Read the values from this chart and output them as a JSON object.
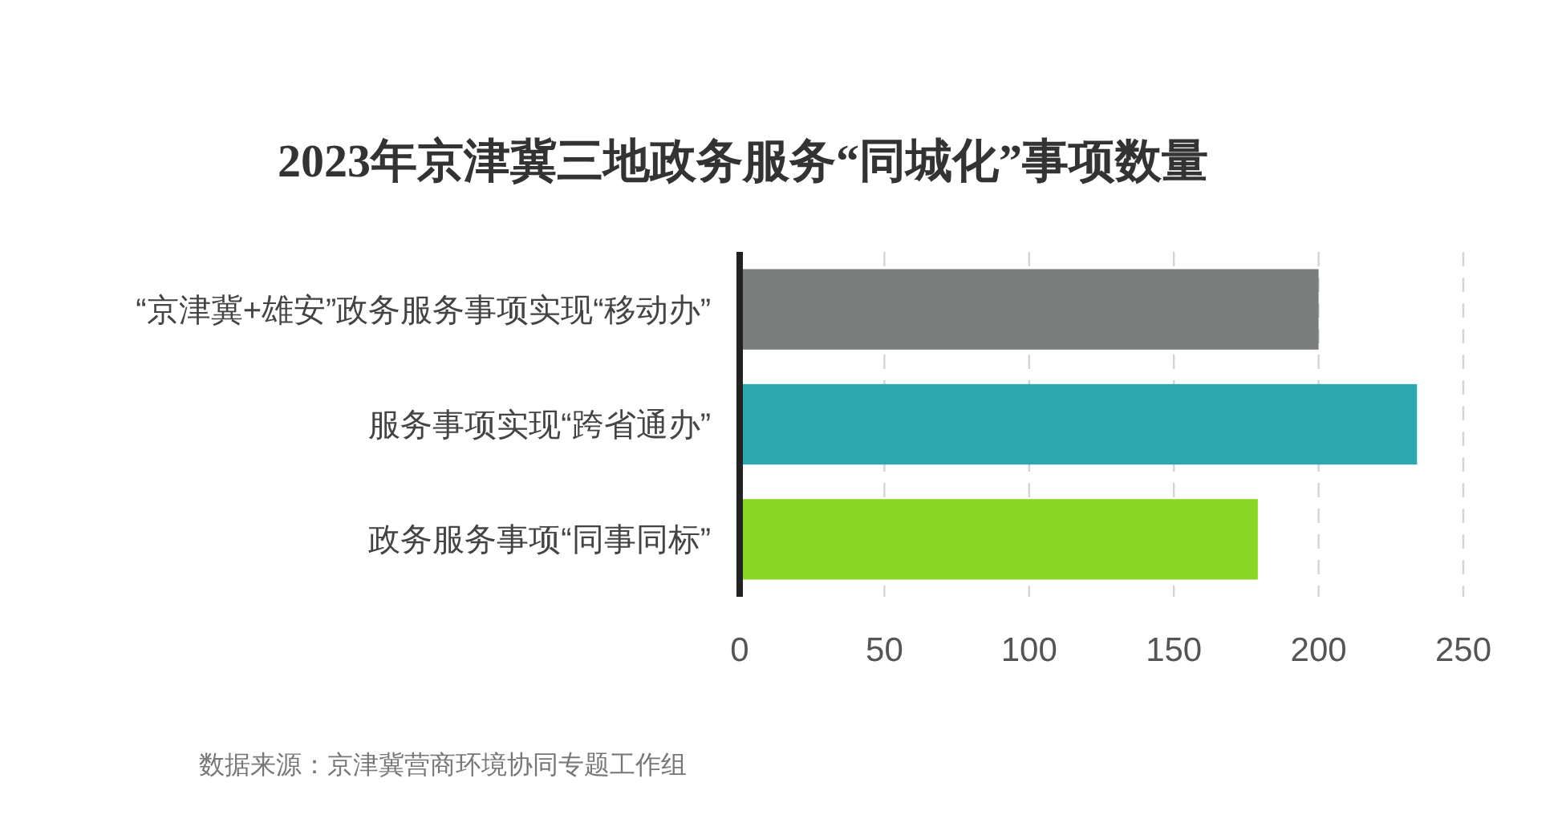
{
  "chart_data": {
    "type": "bar",
    "orientation": "horizontal",
    "title": "2023年京津冀三地政务服务“同城化”事项数量",
    "categories": [
      "“京津冀+雄安”政务服务事项实现“移动办”",
      "服务事项实现“跨省通办”",
      "政务服务事项“同事同标”"
    ],
    "values": [
      200,
      234,
      179
    ],
    "colors": [
      "#7a7f7e",
      "#2ca8ad",
      "#8ad624"
    ],
    "xlim": [
      0,
      250
    ],
    "xticks": [
      0,
      50,
      100,
      150,
      200,
      250
    ],
    "grid": "x",
    "annotations": [
      "数据来源：京津冀营商环境协同专题工作组"
    ]
  }
}
